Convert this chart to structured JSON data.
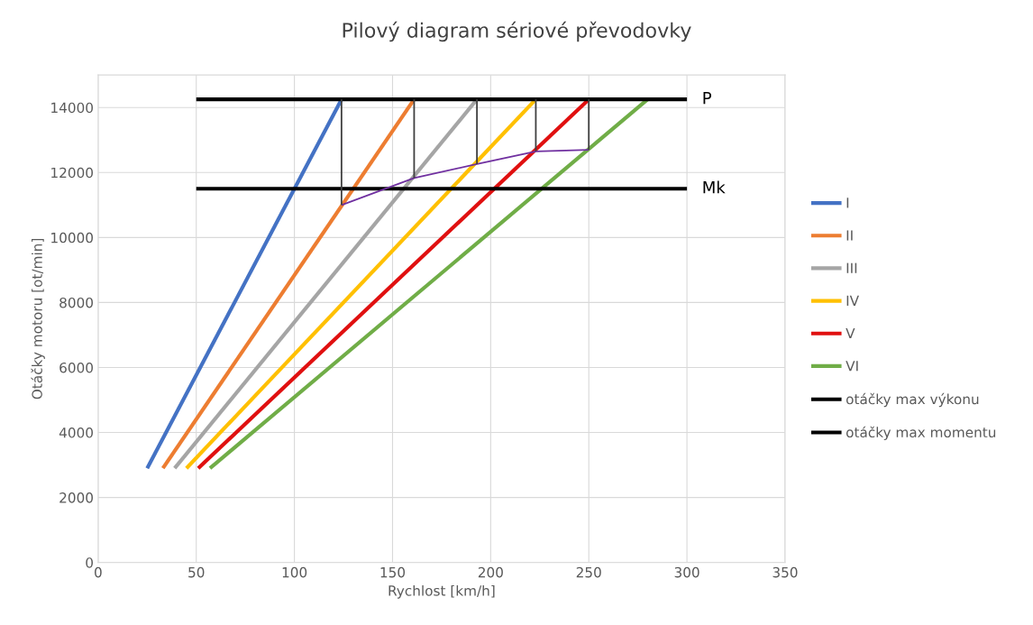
{
  "chart_data": {
    "type": "line",
    "title": "Pilový diagram sériové převodovky",
    "xlabel": "Rychlost [km/h]",
    "ylabel": "Otáčky motoru [ot/min]",
    "xlim": [
      0,
      350
    ],
    "xticks": [
      0,
      50,
      100,
      150,
      200,
      250,
      300,
      350
    ],
    "ylim": [
      0,
      15000
    ],
    "yticks": [
      0,
      2000,
      4000,
      6000,
      8000,
      10000,
      12000,
      14000
    ],
    "grid": true,
    "legend": "right",
    "marker": "none",
    "line_style": "solid",
    "series": [
      {
        "name": "I",
        "color": "#4472c4",
        "x": [
          25,
          124
        ],
        "values": [
          2900,
          14250
        ]
      },
      {
        "name": "II",
        "color": "#ed7d31",
        "x": [
          33,
          161
        ],
        "values": [
          2900,
          14250
        ]
      },
      {
        "name": "III",
        "color": "#a5a5a5",
        "x": [
          39,
          193
        ],
        "values": [
          2900,
          14250
        ]
      },
      {
        "name": "IV",
        "color": "#ffc000",
        "x": [
          45,
          223
        ],
        "values": [
          2900,
          14250
        ]
      },
      {
        "name": "V",
        "color": "#e01010",
        "x": [
          51,
          250
        ],
        "values": [
          2900,
          14250
        ]
      },
      {
        "name": "VI",
        "color": "#70ad47",
        "x": [
          57,
          280
        ],
        "values": [
          2900,
          14250
        ]
      },
      {
        "name": "otáčky max výkonu",
        "color": "#000000",
        "x": [
          50,
          300
        ],
        "values": [
          14250,
          14250
        ]
      },
      {
        "name": "otáčky max momentu",
        "color": "#000000",
        "x": [
          50,
          300
        ],
        "values": [
          11500,
          11500
        ]
      },
      {
        "color": "#7030a0",
        "x": [
          124,
          161,
          193,
          223,
          250
        ],
        "values": [
          11000,
          11830,
          12260,
          12650,
          12700
        ]
      },
      {
        "color": "#404040",
        "x": [
          124,
          124
        ],
        "values": [
          14250,
          11000
        ]
      },
      {
        "color": "#404040",
        "x": [
          161,
          161
        ],
        "values": [
          14250,
          11830
        ]
      },
      {
        "color": "#404040",
        "x": [
          193,
          193
        ],
        "values": [
          14250,
          12260
        ]
      },
      {
        "color": "#404040",
        "x": [
          223,
          223
        ],
        "values": [
          14250,
          12650
        ]
      },
      {
        "color": "#404040",
        "x": [
          250,
          250
        ],
        "values": [
          14250,
          12700
        ]
      }
    ],
    "annotations": [
      {
        "text": "P",
        "x": 300,
        "y": 14250
      },
      {
        "text": "Mk",
        "x": 300,
        "y": 11500
      }
    ]
  }
}
